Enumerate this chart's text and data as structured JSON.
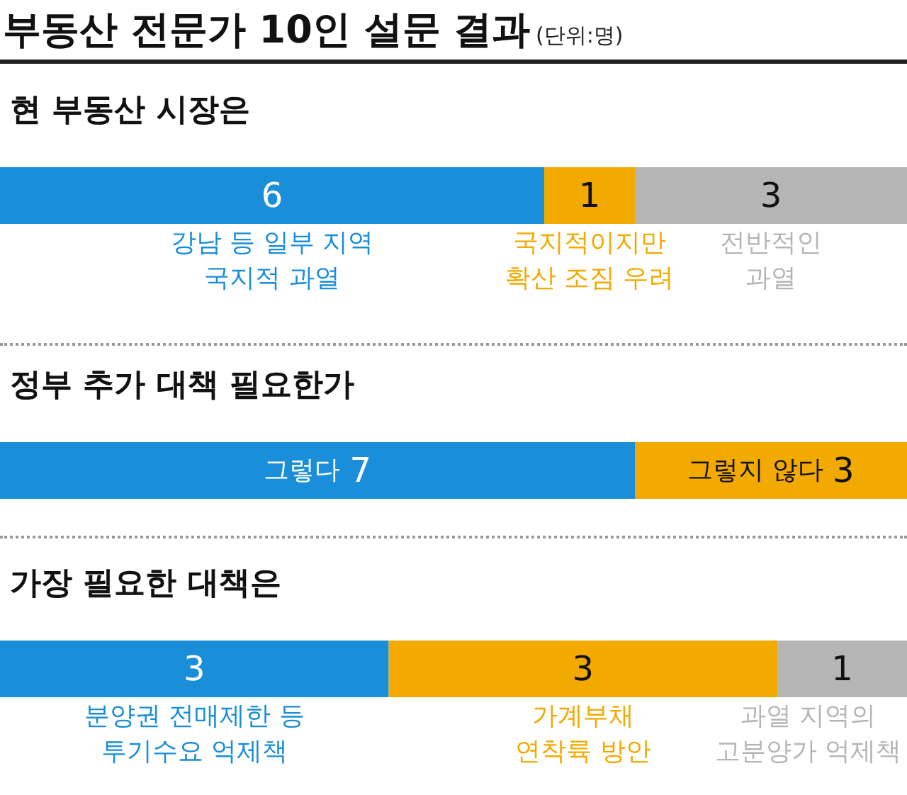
{
  "chart_data": [
    {
      "type": "other",
      "title": "부동산 전문가 10인 설문 결과",
      "subtitle": "(단위:명)"
    },
    {
      "type": "bar",
      "title": "현 부동산 시장은",
      "orientation": "horizontal",
      "stacked": true,
      "categories": [
        null
      ],
      "xlim": [
        0,
        10
      ],
      "tick_labels": false,
      "data_labels": true,
      "legend": "bottom",
      "series": [
        {
          "name": "강남 등 일부 지역\n국지적 과열",
          "color": "#1a8ed8",
          "values": [
            6
          ]
        },
        {
          "name": "국지적이지만\n확산 조짐 우려",
          "color": "#f2a900",
          "values": [
            1
          ]
        },
        {
          "name": "전반적인\n과열",
          "color": "#b5b5b5",
          "values": [
            3
          ]
        }
      ]
    },
    {
      "type": "bar",
      "title": "정부 추가 대책 필요한가",
      "orientation": "horizontal",
      "stacked": true,
      "categories": [
        null
      ],
      "xlim": [
        0,
        10
      ],
      "tick_labels": false,
      "data_labels": true,
      "series": [
        {
          "name": "그렇다",
          "color": "#1a8ed8",
          "values": [
            7
          ]
        },
        {
          "name": "그렇지 않다",
          "color": "#f2a900",
          "values": [
            3
          ]
        }
      ]
    },
    {
      "type": "bar",
      "title": "가장 필요한 대책은",
      "orientation": "horizontal",
      "stacked": true,
      "categories": [
        null
      ],
      "tick_labels": false,
      "data_labels": true,
      "legend": "bottom",
      "series": [
        {
          "name": "분양권 전매제한 등\n투기수요 억제책",
          "color": "#1a8ed8",
          "values": [
            3
          ]
        },
        {
          "name": "가계부채\n연착륙 방안",
          "color": "#f2a900",
          "values": [
            3
          ]
        },
        {
          "name": "과열 지역의\n고분양가 억제책",
          "color": "#b5b5b5",
          "values": [
            1
          ]
        }
      ]
    }
  ]
}
